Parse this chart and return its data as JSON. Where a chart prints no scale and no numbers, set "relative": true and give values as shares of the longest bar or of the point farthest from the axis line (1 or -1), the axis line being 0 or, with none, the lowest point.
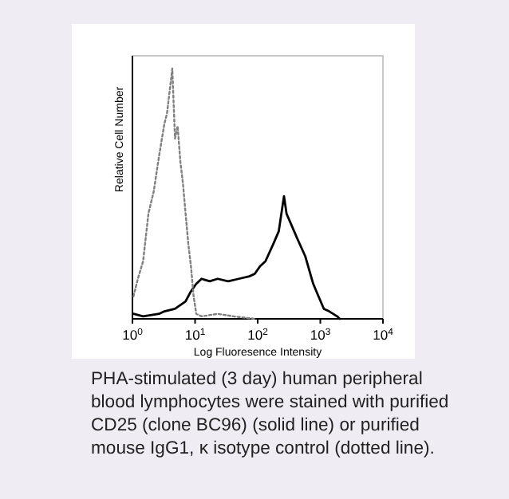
{
  "chart_data": {
    "type": "line",
    "relative": true,
    "log": "x",
    "xlabel": "Log Fluoresence Intensity",
    "ylabel": "Relative Cell Number",
    "xlim": [
      1,
      10000
    ],
    "xticks": [
      {
        "value": 1,
        "label": "10$^{0}$"
      },
      {
        "value": 10,
        "label": "10$^{1}$"
      },
      {
        "value": 100,
        "label": "10$^{2}$"
      },
      {
        "value": 1000,
        "label": "10$^{3}$"
      },
      {
        "value": 10000,
        "label": "10$^{4}$"
      }
    ],
    "series": [
      {
        "color": "#000000",
        "line_style": "solid",
        "x": [
          1.04,
          1.48,
          2.66,
          3.24,
          4.78,
          7.06,
          8.6,
          10.45,
          12.7,
          17.1,
          22.9,
          33.8,
          49.9,
          73.7,
          89.8,
          109,
          133,
          178,
          217,
          263,
          289,
          353,
          430,
          575,
          770,
          935,
          1140,
          1385,
          1860,
          2040
        ],
        "values": [
          0.02,
          0.01,
          0.02,
          0.03,
          0.04,
          0.07,
          0.11,
          0.14,
          0.16,
          0.15,
          0.16,
          0.15,
          0.16,
          0.17,
          0.18,
          0.21,
          0.23,
          0.3,
          0.35,
          0.49,
          0.42,
          0.37,
          0.32,
          0.25,
          0.14,
          0.09,
          0.04,
          0.03,
          0.01,
          0
        ]
      },
      {
        "color": "#808080",
        "line_style": "dotted",
        "x": [
          1.04,
          1.22,
          1.48,
          1.8,
          2.19,
          2.66,
          3.24,
          3.56,
          3.93,
          4.33,
          4.78,
          5.27,
          5.81,
          6.41,
          7.06,
          7.8,
          8.6,
          9.48,
          10.45,
          12.7,
          22.9,
          41.1,
          89.8
        ],
        "values": [
          0.09,
          0.16,
          0.23,
          0.42,
          0.51,
          0.65,
          0.78,
          0.82,
          0.91,
          1,
          0.72,
          0.77,
          0.63,
          0.54,
          0.42,
          0.3,
          0.21,
          0.09,
          0.02,
          0.01,
          0.02,
          0.01,
          0
        ]
      }
    ],
    "annotations": [
      "PHA-stimulated (3 day) human peripheral blood lymphocytes were stained with purified CD25 (clone BC96) (solid line) or purified mouse IgG1, κ isotype control (dotted line)."
    ]
  }
}
